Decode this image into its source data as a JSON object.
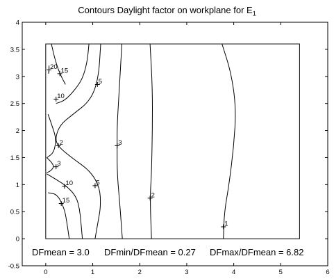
{
  "chart_data": {
    "type": "contour",
    "title": "Contours Daylight factor on workplane  for E",
    "title_subscript": "1",
    "xlim": [
      -0.5,
      6
    ],
    "ylim": [
      -0.5,
      4
    ],
    "xticks": [
      "0",
      "1",
      "2",
      "3",
      "4",
      "5",
      "6"
    ],
    "xtick_values": [
      0,
      1,
      2,
      3,
      4,
      5,
      6
    ],
    "yticks": [
      "-0.5",
      "0",
      "0.5",
      "1",
      "1.5",
      "2",
      "2.5",
      "3",
      "3.5",
      "4"
    ],
    "ytick_values": [
      -0.5,
      0,
      0.5,
      1,
      1.5,
      2,
      2.5,
      3,
      3.5,
      4
    ],
    "workplane_rect": {
      "x": [
        0,
        5.4
      ],
      "y": [
        0,
        3.6
      ]
    },
    "contours": [
      {
        "level": "20",
        "points": [
          [
            0.07,
            3.2
          ],
          [
            0.07,
            3.12
          ],
          [
            0.06,
            3.05
          ]
        ]
      },
      {
        "level": "15",
        "points": [
          [
            0.12,
            3.6
          ],
          [
            0.2,
            3.3
          ],
          [
            0.3,
            3.05
          ],
          [
            0.42,
            2.85
          ]
        ]
      },
      {
        "level": "10",
        "points": [
          [
            0.22,
            2.5
          ],
          [
            0.4,
            2.55
          ],
          [
            0.62,
            2.75
          ],
          [
            0.78,
            2.95
          ],
          [
            0.88,
            3.25
          ],
          [
            0.92,
            3.6
          ]
        ]
      },
      {
        "level": "5",
        "points": [
          [
            1.17,
            3.6
          ],
          [
            1.12,
            2.95
          ],
          [
            0.95,
            2.55
          ],
          [
            0.55,
            2.28
          ],
          [
            0.3,
            2.1
          ],
          [
            0.2,
            1.85
          ],
          [
            0.27,
            1.7
          ],
          [
            0.55,
            1.5
          ],
          [
            0.95,
            1.25
          ],
          [
            1.15,
            0.95
          ],
          [
            1.17,
            0.6
          ],
          [
            1.12,
            0.35
          ],
          [
            1.05,
            0
          ]
        ]
      },
      {
        "level": "3",
        "points": [
          [
            1.62,
            3.6
          ],
          [
            1.56,
            2.7
          ],
          [
            1.52,
            2.1
          ],
          [
            1.52,
            1.7
          ],
          [
            1.52,
            1.2
          ],
          [
            1.58,
            0.6
          ],
          [
            1.63,
            0
          ]
        ]
      },
      {
        "level": "2",
        "points": [
          [
            2.22,
            3.6
          ],
          [
            2.27,
            2.8
          ],
          [
            2.27,
            2.0
          ],
          [
            2.25,
            1.2
          ],
          [
            2.22,
            0.75
          ],
          [
            2.25,
            0
          ]
        ]
      },
      {
        "level": "2",
        "points": [
          [
            0.05,
            2.3
          ],
          [
            0.15,
            2.05
          ],
          [
            0.22,
            1.85
          ],
          [
            0.18,
            1.6
          ],
          [
            0.03,
            1.5
          ]
        ]
      },
      {
        "level": "3",
        "points": [
          [
            0.02,
            1.5
          ],
          [
            0.12,
            1.42
          ],
          [
            0.18,
            1.33
          ],
          [
            0.1,
            1.25
          ],
          [
            0.02,
            1.22
          ]
        ]
      },
      {
        "level": "10",
        "points": [
          [
            0.02,
            1.2
          ],
          [
            0.25,
            1.08
          ],
          [
            0.45,
            0.97
          ],
          [
            0.65,
            0.78
          ],
          [
            0.72,
            0.55
          ],
          [
            0.75,
            0.3
          ],
          [
            0.78,
            0
          ]
        ]
      },
      {
        "level": "15",
        "points": [
          [
            0.05,
            0.85
          ],
          [
            0.25,
            0.82
          ],
          [
            0.4,
            0.55
          ],
          [
            0.45,
            0.3
          ],
          [
            0.5,
            0
          ]
        ]
      },
      {
        "level": "1",
        "points": [
          [
            3.75,
            3.6
          ],
          [
            3.95,
            3.05
          ],
          [
            4.05,
            2.4
          ],
          [
            4.0,
            1.7
          ],
          [
            3.9,
            1.0
          ],
          [
            3.8,
            0.5
          ],
          [
            3.78,
            0
          ]
        ]
      }
    ],
    "contour_labels": [
      {
        "text": "20",
        "x": 0.07,
        "y": 3.12
      },
      {
        "text": "15",
        "x": 0.3,
        "y": 3.05
      },
      {
        "text": "10",
        "x": 0.22,
        "y": 2.58
      },
      {
        "text": "5",
        "x": 1.1,
        "y": 2.85
      },
      {
        "text": "2",
        "x": 0.27,
        "y": 1.72
      },
      {
        "text": "3",
        "x": 1.52,
        "y": 1.72
      },
      {
        "text": "3",
        "x": 0.22,
        "y": 1.33
      },
      {
        "text": "10",
        "x": 0.4,
        "y": 0.97
      },
      {
        "text": "5",
        "x": 1.05,
        "y": 0.98
      },
      {
        "text": "15",
        "x": 0.33,
        "y": 0.65
      },
      {
        "text": "2",
        "x": 2.22,
        "y": 0.75
      },
      {
        "text": "1",
        "x": 3.78,
        "y": 0.22
      }
    ],
    "stats": {
      "dfmean": "DFmean = 3.0",
      "dfmin_ratio": "DFmin/DFmean = 0.27",
      "dfmax_ratio": "DFmax/DFmean = 6.82"
    }
  }
}
